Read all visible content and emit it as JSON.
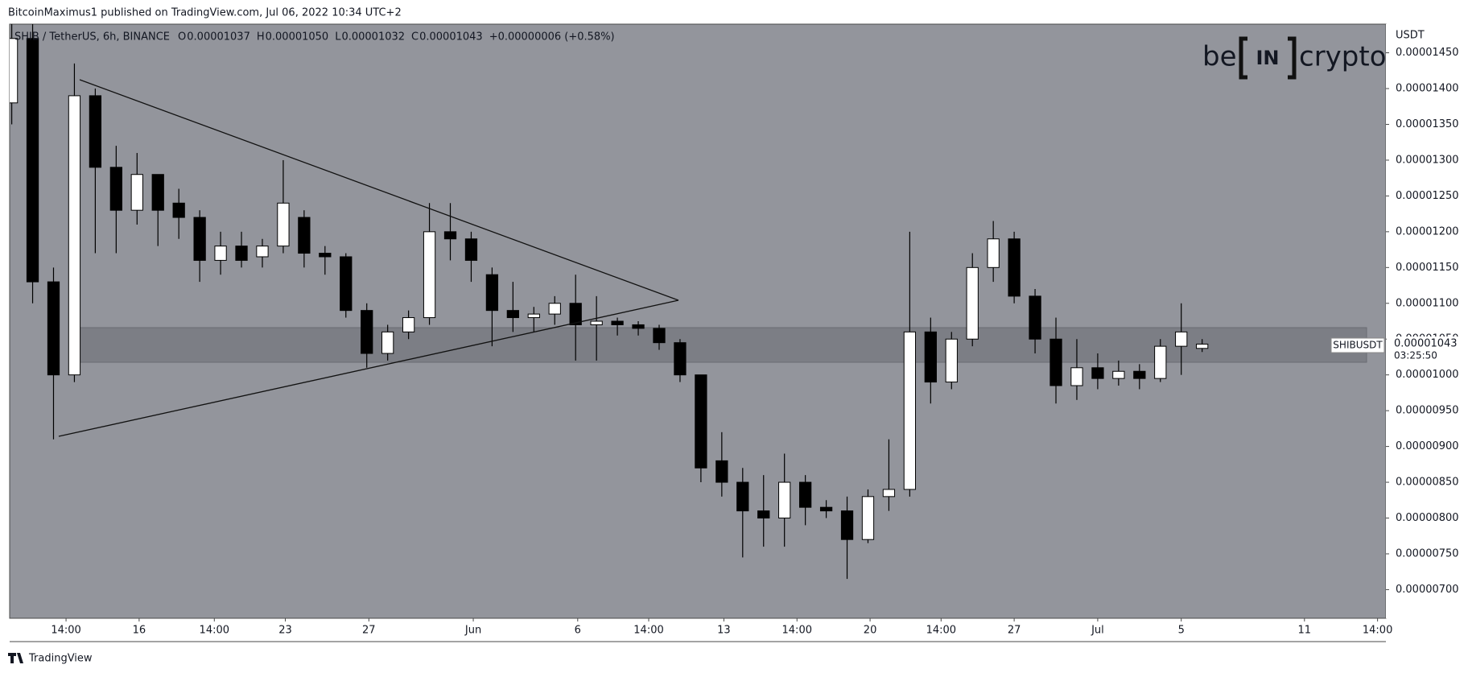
{
  "header": {
    "publisher": "BitcoinMaximus1 published on TradingView.com, Jul 06, 2022 10:34 UTC+2",
    "symbol": "SHIB / TetherUS, 6h, BINANCE",
    "ohlc": [
      {
        "key": "O",
        "value": "0.00001037"
      },
      {
        "key": "H",
        "value": "0.00001050"
      },
      {
        "key": "L",
        "value": "0.00001032"
      },
      {
        "key": "C",
        "value": "0.00001043"
      }
    ],
    "change": "+0.00000006 (+0.58%)"
  },
  "logo": {
    "left": "be",
    "middle": "IN",
    "right": "crypto"
  },
  "price_label": {
    "symbol": "SHIBUSDT",
    "price": "0.00001043",
    "countdown": "03:25:50"
  },
  "footer": "TradingView",
  "chart_data": {
    "type": "candlestick",
    "y_axis_label": "USDT",
    "up_color": "#ffffff",
    "down_color": "#000000",
    "wick_color": "#000000",
    "grid": false,
    "x": [
      0,
      1,
      2,
      3,
      4,
      5,
      6,
      7,
      8,
      9,
      10,
      11,
      12,
      13,
      14,
      15,
      16,
      17,
      18,
      19,
      20,
      21,
      22,
      23,
      24,
      25,
      26,
      27,
      28,
      29,
      30,
      31,
      32,
      33,
      34,
      35,
      36,
      37,
      38,
      39,
      40,
      41,
      42,
      43,
      44,
      45,
      46,
      47,
      48,
      49,
      50,
      51,
      52,
      53,
      54,
      55,
      56,
      57
    ],
    "open": [
      1.38e-05,
      1.47e-05,
      1.13e-05,
      1e-05,
      1.39e-05,
      1.29e-05,
      1.23e-05,
      1.28e-05,
      1.24e-05,
      1.22e-05,
      1.16e-05,
      1.18e-05,
      1.165e-05,
      1.18e-05,
      1.22e-05,
      1.17e-05,
      1.165e-05,
      1.09e-05,
      1.03e-05,
      1.06e-05,
      1.08e-05,
      1.2e-05,
      1.19e-05,
      1.14e-05,
      1.09e-05,
      1.08e-05,
      1.085e-05,
      1.1e-05,
      1.07e-05,
      1.075e-05,
      1.07e-05,
      1.065e-05,
      1.045e-05,
      1e-05,
      8.8e-06,
      8.5e-06,
      8.1e-06,
      8e-06,
      8.5e-06,
      8.15e-06,
      8.1e-06,
      7.7e-06,
      8.3e-06,
      8.4e-06,
      1.06e-05,
      9.9e-06,
      1.05e-05,
      1.15e-05,
      1.19e-05,
      1.11e-05,
      1.05e-05,
      9.85e-06,
      1.01e-05,
      9.95e-06,
      1.005e-05,
      9.95e-06,
      1.04e-05,
      1.037e-05
    ],
    "high": [
      1.49e-05,
      1.49e-05,
      1.15e-05,
      1.435e-05,
      1.4e-05,
      1.32e-05,
      1.31e-05,
      1.28e-05,
      1.26e-05,
      1.23e-05,
      1.2e-05,
      1.2e-05,
      1.19e-05,
      1.3e-05,
      1.23e-05,
      1.18e-05,
      1.17e-05,
      1.1e-05,
      1.07e-05,
      1.09e-05,
      1.24e-05,
      1.24e-05,
      1.2e-05,
      1.15e-05,
      1.13e-05,
      1.095e-05,
      1.11e-05,
      1.14e-05,
      1.11e-05,
      1.08e-05,
      1.075e-05,
      1.07e-05,
      1.05e-05,
      1e-05,
      9.2e-06,
      8.7e-06,
      8.6e-06,
      8.9e-06,
      8.6e-06,
      8.25e-06,
      8.3e-06,
      8.4e-06,
      9.1e-06,
      1.2e-05,
      1.08e-05,
      1.06e-05,
      1.17e-05,
      1.215e-05,
      1.2e-05,
      1.12e-05,
      1.08e-05,
      1.05e-05,
      1.03e-05,
      1.02e-05,
      1.015e-05,
      1.05e-05,
      1.1e-05,
      1.05e-05
    ],
    "low": [
      1.35e-05,
      1.1e-05,
      9.1e-06,
      9.9e-06,
      1.17e-05,
      1.17e-05,
      1.21e-05,
      1.18e-05,
      1.19e-05,
      1.13e-05,
      1.14e-05,
      1.15e-05,
      1.15e-05,
      1.17e-05,
      1.15e-05,
      1.14e-05,
      1.08e-05,
      1.01e-05,
      1.02e-05,
      1.05e-05,
      1.07e-05,
      1.16e-05,
      1.13e-05,
      1.04e-05,
      1.06e-05,
      1.06e-05,
      1.07e-05,
      1.02e-05,
      1.02e-05,
      1.055e-05,
      1.055e-05,
      1.035e-05,
      9.9e-06,
      8.5e-06,
      8.3e-06,
      7.45e-06,
      7.6e-06,
      7.6e-06,
      7.9e-06,
      8e-06,
      7.15e-06,
      7.65e-06,
      8.1e-06,
      8.3e-06,
      9.6e-06,
      9.8e-06,
      1.04e-05,
      1.13e-05,
      1.1e-05,
      1.03e-05,
      9.6e-06,
      9.65e-06,
      9.8e-06,
      9.85e-06,
      9.8e-06,
      9.9e-06,
      1e-05,
      1.032e-05
    ],
    "close": [
      1.47e-05,
      1.13e-05,
      1e-05,
      1.39e-05,
      1.29e-05,
      1.23e-05,
      1.28e-05,
      1.23e-05,
      1.22e-05,
      1.16e-05,
      1.18e-05,
      1.16e-05,
      1.18e-05,
      1.24e-05,
      1.17e-05,
      1.165e-05,
      1.09e-05,
      1.03e-05,
      1.06e-05,
      1.08e-05,
      1.2e-05,
      1.19e-05,
      1.16e-05,
      1.09e-05,
      1.08e-05,
      1.085e-05,
      1.1e-05,
      1.07e-05,
      1.075e-05,
      1.07e-05,
      1.065e-05,
      1.045e-05,
      1e-05,
      8.7e-06,
      8.5e-06,
      8.1e-06,
      8e-06,
      8.5e-06,
      8.15e-06,
      8.1e-06,
      7.7e-06,
      8.3e-06,
      8.4e-06,
      1.06e-05,
      9.9e-06,
      1.05e-05,
      1.15e-05,
      1.19e-05,
      1.11e-05,
      1.05e-05,
      9.85e-06,
      1.01e-05,
      9.95e-06,
      1.005e-05,
      9.95e-06,
      1.04e-05,
      1.06e-05,
      1.043e-05
    ],
    "xlim": [
      -0.1,
      65.8
    ],
    "xticks": [
      {
        "value": 2.6,
        "label": "14:00"
      },
      {
        "value": 6.1,
        "label": "16"
      },
      {
        "value": 9.7,
        "label": "14:00"
      },
      {
        "value": 13.1,
        "label": "23"
      },
      {
        "value": 17.1,
        "label": "27"
      },
      {
        "value": 22.1,
        "label": "Jun"
      },
      {
        "value": 27.1,
        "label": "6"
      },
      {
        "value": 30.5,
        "label": "14:00"
      },
      {
        "value": 34.1,
        "label": "13"
      },
      {
        "value": 37.6,
        "label": "14:00"
      },
      {
        "value": 41.1,
        "label": "20"
      },
      {
        "value": 44.5,
        "label": "14:00"
      },
      {
        "value": 48,
        "label": "27"
      },
      {
        "value": 52,
        "label": "Jul"
      },
      {
        "value": 56,
        "label": "5"
      },
      {
        "value": 61.9,
        "label": "11"
      },
      {
        "value": 65.4,
        "label": "14:00"
      }
    ],
    "ylim": [
      6.6e-06,
      1.49e-05
    ],
    "yticks": [
      {
        "value": 7e-06,
        "label": "0.00000700"
      },
      {
        "value": 7.5e-06,
        "label": "0.00000750"
      },
      {
        "value": 8e-06,
        "label": "0.00000800"
      },
      {
        "value": 8.5e-06,
        "label": "0.00000850"
      },
      {
        "value": 9e-06,
        "label": "0.00000900"
      },
      {
        "value": 9.5e-06,
        "label": "0.00000950"
      },
      {
        "value": 1e-05,
        "label": "0.00001000"
      },
      {
        "value": 1.05e-05,
        "label": "0.00001050"
      },
      {
        "value": 1.1e-05,
        "label": "0.00001100"
      },
      {
        "value": 1.15e-05,
        "label": "0.00001150"
      },
      {
        "value": 1.2e-05,
        "label": "0.00001200"
      },
      {
        "value": 1.25e-05,
        "label": "0.00001250"
      },
      {
        "value": 1.3e-05,
        "label": "0.00001300"
      },
      {
        "value": 1.35e-05,
        "label": "0.00001350"
      },
      {
        "value": 1.4e-05,
        "label": "0.00001400"
      },
      {
        "value": 1.45e-05,
        "label": "0.00001450"
      }
    ]
  }
}
